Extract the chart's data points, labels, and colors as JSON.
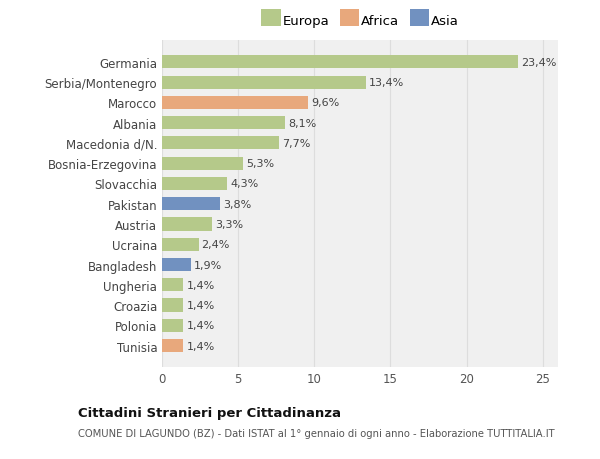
{
  "categories": [
    "Tunisia",
    "Polonia",
    "Croazia",
    "Ungheria",
    "Bangladesh",
    "Ucraina",
    "Austria",
    "Pakistan",
    "Slovacchia",
    "Bosnia-Erzegovina",
    "Macedonia d/N.",
    "Albania",
    "Marocco",
    "Serbia/Montenegro",
    "Germania"
  ],
  "values": [
    1.4,
    1.4,
    1.4,
    1.4,
    1.9,
    2.4,
    3.3,
    3.8,
    4.3,
    5.3,
    7.7,
    8.1,
    9.6,
    13.4,
    23.4
  ],
  "colors": [
    "#e8a87c",
    "#b5c98a",
    "#b5c98a",
    "#b5c98a",
    "#7191c0",
    "#b5c98a",
    "#b5c98a",
    "#7191c0",
    "#b5c98a",
    "#b5c98a",
    "#b5c98a",
    "#b5c98a",
    "#e8a87c",
    "#b5c98a",
    "#b5c98a"
  ],
  "labels": [
    "1,4%",
    "1,4%",
    "1,4%",
    "1,4%",
    "1,9%",
    "2,4%",
    "3,3%",
    "3,8%",
    "4,3%",
    "5,3%",
    "7,7%",
    "8,1%",
    "9,6%",
    "13,4%",
    "23,4%"
  ],
  "legend_labels": [
    "Europa",
    "Africa",
    "Asia"
  ],
  "legend_colors": [
    "#b5c98a",
    "#e8a87c",
    "#7191c0"
  ],
  "title": "Cittadini Stranieri per Cittadinanza",
  "subtitle": "COMUNE DI LAGUNDO (BZ) - Dati ISTAT al 1° gennaio di ogni anno - Elaborazione TUTTITALIA.IT",
  "xlim": [
    0,
    26
  ],
  "xticks": [
    0,
    5,
    10,
    15,
    20,
    25
  ],
  "background_color": "#ffffff",
  "bar_background": "#f0f0f0",
  "grid_color": "#dddddd"
}
